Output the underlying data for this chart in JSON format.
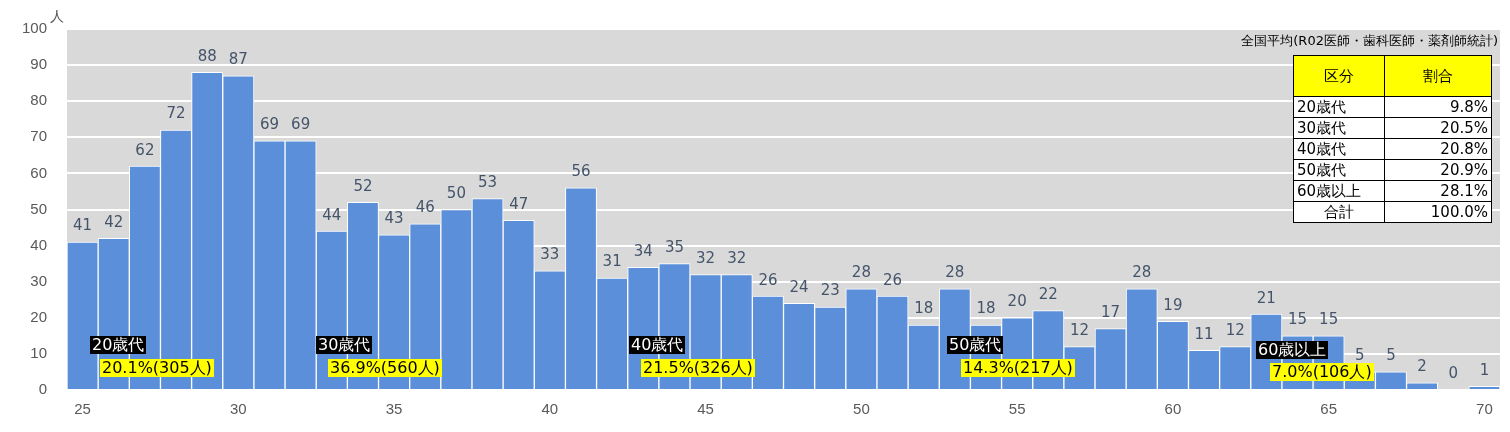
{
  "chart_data": {
    "type": "bar",
    "ylabel": "人",
    "categories": [
      "25",
      null,
      null,
      null,
      null,
      "30",
      null,
      null,
      null,
      null,
      "35",
      null,
      null,
      null,
      null,
      "40",
      null,
      null,
      null,
      null,
      "45",
      null,
      null,
      null,
      null,
      "50",
      null,
      null,
      null,
      null,
      "55",
      null,
      null,
      null,
      null,
      "60",
      null,
      null,
      null,
      null,
      "65",
      null,
      null,
      null,
      null,
      "70"
    ],
    "values": [
      41,
      42,
      62,
      72,
      88,
      87,
      69,
      69,
      44,
      52,
      43,
      46,
      50,
      53,
      47,
      33,
      56,
      31,
      34,
      35,
      32,
      32,
      26,
      24,
      23,
      28,
      26,
      18,
      28,
      18,
      20,
      22,
      12,
      17,
      28,
      19,
      11,
      12,
      21,
      15,
      15,
      5,
      5,
      2,
      0,
      1
    ],
    "color": "#5b8fd9",
    "ylim": [
      0,
      100
    ],
    "yticks": [
      0,
      10,
      20,
      30,
      40,
      50,
      60,
      70,
      80,
      90,
      100
    ],
    "grid": "y",
    "data_labels": true,
    "annotations": [
      "20歳代",
      "20.1%(305人)",
      "30歳代",
      "36.9%(560人)",
      "40歳代",
      "21.5%(326人)",
      "50歳代",
      "14.3%(217人)",
      "60歳以上",
      "7.0%(106人)",
      "全国平均(R02医師・歯科医師・薬剤師統計)",
      "区分",
      "割合",
      "20歳代",
      "9.8%",
      "30歳代",
      "20.5%",
      "40歳代",
      "20.8%",
      "50歳代",
      "20.9%",
      "60歳以上",
      "28.1%",
      "合計",
      "100.0%"
    ]
  }
}
